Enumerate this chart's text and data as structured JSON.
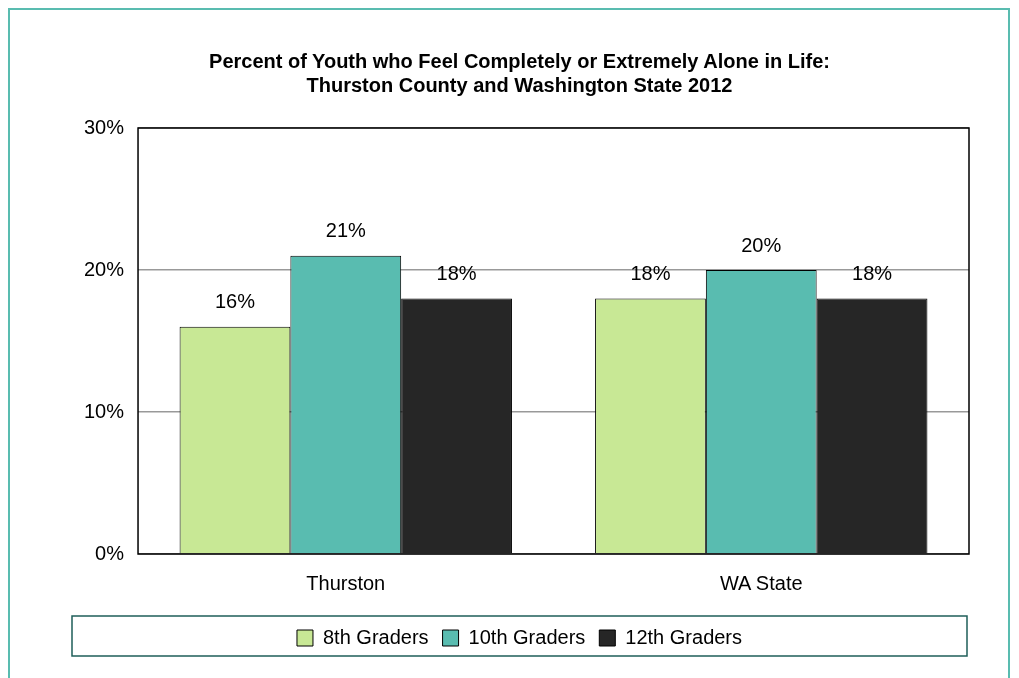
{
  "chart_data": {
    "type": "bar",
    "title": "Percent of Youth who Feel Completely or Extremely Alone in Life: Thurston County and Washington State 2012",
    "categories": [
      "Thurston",
      "WA State"
    ],
    "series": [
      {
        "name": "8th Graders",
        "color": "#c8e895",
        "values": [
          16,
          18
        ],
        "value_labels": [
          "16%",
          "18%"
        ]
      },
      {
        "name": "10th Graders",
        "color": "#59bcb0",
        "values": [
          21,
          20
        ],
        "value_labels": [
          "21%",
          "20%"
        ]
      },
      {
        "name": "12th Graders",
        "color": "#262626",
        "values": [
          18,
          18
        ],
        "value_labels": [
          "18%",
          "18%"
        ]
      }
    ],
    "ylim": [
      0,
      30
    ],
    "yticks": [
      {
        "value": 0,
        "label": "0%"
      },
      {
        "value": 10,
        "label": "10%"
      },
      {
        "value": 20,
        "label": "20%"
      },
      {
        "value": 30,
        "label": "30%"
      }
    ],
    "grid": "y",
    "legend": "bottom"
  }
}
